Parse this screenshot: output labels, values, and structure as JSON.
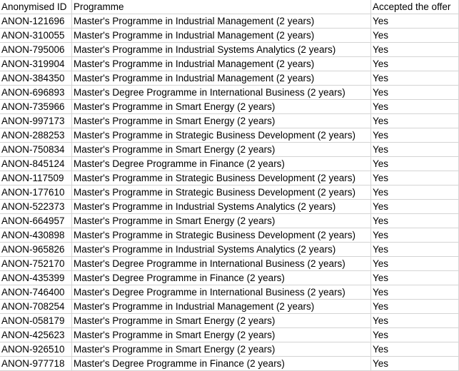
{
  "headers": {
    "id": "Anonymised ID",
    "programme": "Programme",
    "accepted": "Accepted the offer"
  },
  "rows": [
    {
      "id": "ANON-121696",
      "programme": "Master's Programme in Industrial Management (2 years)",
      "accepted": "Yes"
    },
    {
      "id": "ANON-310055",
      "programme": "Master's Programme in Industrial Management (2 years)",
      "accepted": "Yes"
    },
    {
      "id": "ANON-795006",
      "programme": "Master's Programme in Industrial Systems Analytics (2 years)",
      "accepted": "Yes"
    },
    {
      "id": "ANON-319904",
      "programme": "Master's Programme in Industrial Management (2 years)",
      "accepted": "Yes"
    },
    {
      "id": "ANON-384350",
      "programme": "Master's Programme in Industrial Management (2 years)",
      "accepted": "Yes"
    },
    {
      "id": "ANON-696893",
      "programme": "Master's Degree Programme in International Business (2 years)",
      "accepted": "Yes"
    },
    {
      "id": "ANON-735966",
      "programme": "Master's Programme in Smart Energy (2 years)",
      "accepted": "Yes"
    },
    {
      "id": "ANON-997173",
      "programme": "Master's Programme in Smart Energy (2 years)",
      "accepted": "Yes"
    },
    {
      "id": "ANON-288253",
      "programme": "Master's Programme in Strategic Business Development (2 years)",
      "accepted": "Yes"
    },
    {
      "id": "ANON-750834",
      "programme": "Master's Programme in Smart Energy (2 years)",
      "accepted": "Yes"
    },
    {
      "id": "ANON-845124",
      "programme": "Master's Degree Programme in Finance (2 years)",
      "accepted": "Yes"
    },
    {
      "id": "ANON-117509",
      "programme": "Master's Programme in Strategic Business Development (2 years)",
      "accepted": "Yes"
    },
    {
      "id": "ANON-177610",
      "programme": "Master's Programme in Strategic Business Development (2 years)",
      "accepted": "Yes"
    },
    {
      "id": "ANON-522373",
      "programme": "Master's Programme in Industrial Systems Analytics (2 years)",
      "accepted": "Yes"
    },
    {
      "id": "ANON-664957",
      "programme": "Master's Programme in Smart Energy (2 years)",
      "accepted": "Yes"
    },
    {
      "id": "ANON-430898",
      "programme": "Master's Programme in Strategic Business Development (2 years)",
      "accepted": "Yes"
    },
    {
      "id": "ANON-965826",
      "programme": "Master's Programme in Industrial Systems Analytics (2 years)",
      "accepted": "Yes"
    },
    {
      "id": "ANON-752170",
      "programme": "Master's Degree Programme in International Business (2 years)",
      "accepted": "Yes"
    },
    {
      "id": "ANON-435399",
      "programme": "Master's Degree Programme in Finance (2 years)",
      "accepted": "Yes"
    },
    {
      "id": "ANON-746400",
      "programme": "Master's Degree Programme in International Business (2 years)",
      "accepted": "Yes"
    },
    {
      "id": "ANON-708254",
      "programme": "Master's Programme in Industrial Management (2 years)",
      "accepted": "Yes"
    },
    {
      "id": "ANON-058179",
      "programme": "Master's Programme in Smart Energy (2 years)",
      "accepted": "Yes"
    },
    {
      "id": "ANON-425623",
      "programme": "Master's Programme in Smart Energy (2 years)",
      "accepted": "Yes"
    },
    {
      "id": "ANON-926510",
      "programme": "Master's Programme in Smart Energy (2 years)",
      "accepted": "Yes"
    },
    {
      "id": "ANON-977718",
      "programme": "Master's Degree Programme in Finance (2 years)",
      "accepted": "Yes"
    }
  ]
}
